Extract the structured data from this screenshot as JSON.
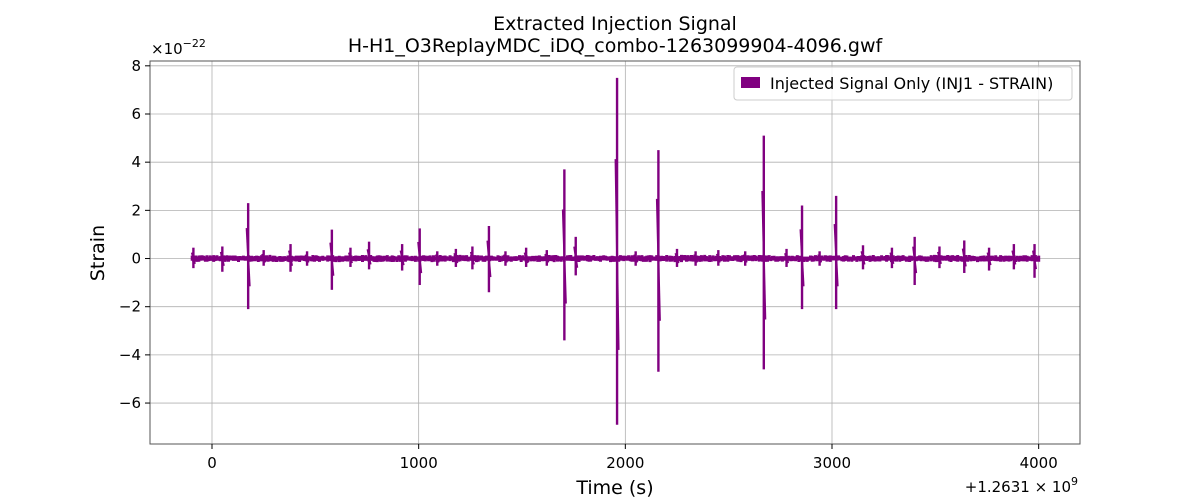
{
  "chart_data": {
    "type": "line",
    "title_line1": "Extracted Injection Signal",
    "title_line2": "H-H1_O3ReplayMDC_iDQ_combo-1263099904-4096.gwf",
    "xlabel": "Time (s)",
    "ylabel": "Strain",
    "x_offset_label": "+1.2631 × 10",
    "x_offset_exp": "9",
    "y_scale_label": "×10",
    "y_scale_exp": "−22",
    "xlim": [
      -300,
      4200
    ],
    "ylim": [
      -7.7,
      8.2
    ],
    "x_ticks": [
      0,
      1000,
      2000,
      3000,
      4000
    ],
    "x_tick_labels": [
      "0",
      "1000",
      "2000",
      "3000",
      "4000"
    ],
    "y_ticks": [
      -6,
      -4,
      -2,
      0,
      2,
      4,
      6,
      8
    ],
    "y_tick_labels": [
      "−6",
      "−4",
      "−2",
      "0",
      "2",
      "4",
      "6",
      "8"
    ],
    "grid": true,
    "legend_position": "top-right",
    "series": [
      {
        "name": "Injected Signal Only (INJ1 - STRAIN)",
        "color": "#800080",
        "x_range": [
          -96,
          4000
        ],
        "baseline_amplitude": 0.15,
        "spikes": [
          {
            "x": -90,
            "max": 0.45,
            "min": -0.4
          },
          {
            "x": 50,
            "max": 0.5,
            "min": -0.55
          },
          {
            "x": 175,
            "max": 2.3,
            "min": -2.1
          },
          {
            "x": 250,
            "max": 0.35,
            "min": -0.3
          },
          {
            "x": 380,
            "max": 0.6,
            "min": -0.55
          },
          {
            "x": 460,
            "max": 0.3,
            "min": -0.3
          },
          {
            "x": 580,
            "max": 1.2,
            "min": -1.3
          },
          {
            "x": 670,
            "max": 0.45,
            "min": -0.35
          },
          {
            "x": 760,
            "max": 0.7,
            "min": -0.45
          },
          {
            "x": 920,
            "max": 0.6,
            "min": -0.5
          },
          {
            "x": 1005,
            "max": 1.25,
            "min": -1.1
          },
          {
            "x": 1090,
            "max": 0.3,
            "min": -0.3
          },
          {
            "x": 1180,
            "max": 0.4,
            "min": -0.35
          },
          {
            "x": 1260,
            "max": 0.5,
            "min": -0.45
          },
          {
            "x": 1340,
            "max": 1.35,
            "min": -1.4
          },
          {
            "x": 1420,
            "max": 0.3,
            "min": -0.3
          },
          {
            "x": 1520,
            "max": 0.45,
            "min": -0.35
          },
          {
            "x": 1620,
            "max": 0.35,
            "min": -0.3
          },
          {
            "x": 1705,
            "max": 3.7,
            "min": -3.4
          },
          {
            "x": 1760,
            "max": 0.9,
            "min": -0.7
          },
          {
            "x": 1960,
            "max": 7.5,
            "min": -6.9
          },
          {
            "x": 2050,
            "max": 0.3,
            "min": -0.3
          },
          {
            "x": 2160,
            "max": 4.5,
            "min": -4.7
          },
          {
            "x": 2250,
            "max": 0.4,
            "min": -0.35
          },
          {
            "x": 2340,
            "max": 0.3,
            "min": -0.3
          },
          {
            "x": 2450,
            "max": 0.35,
            "min": -0.3
          },
          {
            "x": 2580,
            "max": 0.3,
            "min": -0.3
          },
          {
            "x": 2670,
            "max": 5.1,
            "min": -4.6
          },
          {
            "x": 2780,
            "max": 0.4,
            "min": -0.35
          },
          {
            "x": 2855,
            "max": 2.2,
            "min": -2.1
          },
          {
            "x": 2940,
            "max": 0.3,
            "min": -0.3
          },
          {
            "x": 3020,
            "max": 2.6,
            "min": -2.1
          },
          {
            "x": 3150,
            "max": 0.55,
            "min": -0.45
          },
          {
            "x": 3290,
            "max": 0.45,
            "min": -0.4
          },
          {
            "x": 3400,
            "max": 0.9,
            "min": -1.1
          },
          {
            "x": 3520,
            "max": 0.5,
            "min": -0.4
          },
          {
            "x": 3640,
            "max": 0.75,
            "min": -0.6
          },
          {
            "x": 3760,
            "max": 0.45,
            "min": -0.5
          },
          {
            "x": 3880,
            "max": 0.6,
            "min": -0.45
          },
          {
            "x": 3980,
            "max": 0.6,
            "min": -0.8
          }
        ]
      }
    ]
  }
}
